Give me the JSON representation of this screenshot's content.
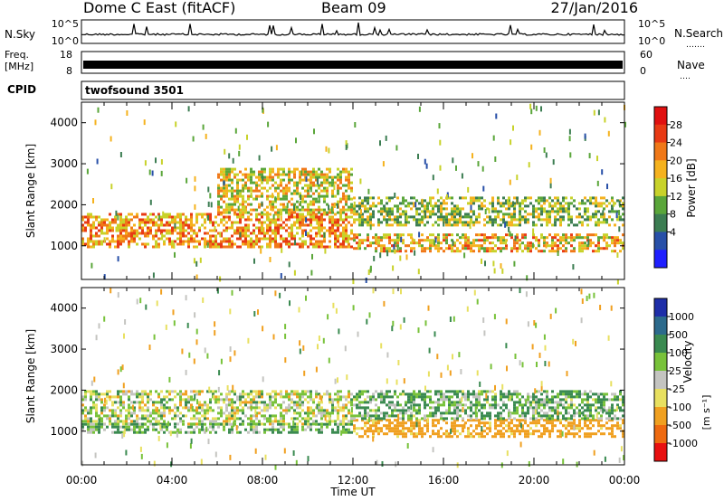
{
  "header": {
    "station": "Dome C East (fitACF)",
    "beam": "Beam 09",
    "date": "27/Jan/2016"
  },
  "nsky_panel": {
    "left_label": "N.Sky",
    "left_ticks": [
      "10^5",
      "10^0"
    ],
    "right_ticks": [
      "10^5",
      "10^0"
    ],
    "right_label": "N.Search",
    "right_dots": "․․․․․․․"
  },
  "freq_panel": {
    "label_line1": "Freq.",
    "label_line2": "[MHz]",
    "left_ticks": [
      "18",
      "8"
    ],
    "right_ticks": [
      "60",
      "0"
    ],
    "right_label": "Nave",
    "right_dots": "․․․․"
  },
  "cpid_panel": {
    "label": "CPID",
    "value": "twofsound 3501"
  },
  "colors": {
    "power_scale": [
      "#1f1fff",
      "#2850a8",
      "#3c7d52",
      "#5aa63a",
      "#c8d22a",
      "#f5b21e",
      "#f07818",
      "#e83a14",
      "#e01010"
    ],
    "velocity_scale": [
      "#1e2ea8",
      "#2c6a8c",
      "#3a8a50",
      "#78c23a",
      "#c4c4c0",
      "#e8e060",
      "#f0a020",
      "#ee6a10",
      "#e81010"
    ]
  },
  "chart_data": [
    {
      "type": "heatmap",
      "name": "power-panel",
      "x": {
        "label": "Time UT",
        "range": [
          "00:00",
          "24:00"
        ],
        "ticks": [
          "00:00",
          "04:00",
          "08:00",
          "12:00",
          "16:00",
          "20:00",
          "00:00"
        ]
      },
      "y": {
        "label": "Slant Range [km]",
        "range": [
          180,
          4500
        ],
        "ticks": [
          1000,
          2000,
          3000,
          4000
        ]
      },
      "colorbar": {
        "label": "Power [dB]",
        "range": [
          0,
          32
        ],
        "ticks": [
          4,
          8,
          12,
          16,
          20,
          24,
          28
        ]
      },
      "dominant_bands": [
        {
          "start_h": 0,
          "end_h": 12,
          "range_km": [
            1000,
            1800
          ],
          "level_db": 22
        },
        {
          "start_h": 6,
          "end_h": 12,
          "range_km": [
            1800,
            2900
          ],
          "level_db": 18
        },
        {
          "start_h": 12,
          "end_h": 24,
          "range_km": [
            900,
            1300
          ],
          "level_db": 20
        },
        {
          "start_h": 12,
          "end_h": 24,
          "range_km": [
            1500,
            2200
          ],
          "level_db": 14
        }
      ]
    },
    {
      "type": "heatmap",
      "name": "velocity-panel",
      "x": {
        "label": "Time UT",
        "range": [
          "00:00",
          "24:00"
        ],
        "ticks": [
          "00:00",
          "04:00",
          "08:00",
          "12:00",
          "16:00",
          "20:00",
          "00:00"
        ]
      },
      "y": {
        "label": "Slant Range [km]",
        "range": [
          180,
          4500
        ],
        "ticks": [
          1000,
          2000,
          3000,
          4000
        ]
      },
      "colorbar": {
        "label": "Velocity",
        "units": "[m s⁻¹]",
        "ticks": [
          1000,
          500,
          100,
          25,
          -25,
          -100,
          -500,
          -1000
        ]
      },
      "dominant_bands": [
        {
          "start_h": 0,
          "end_h": 12,
          "range_km": [
            1200,
            2000
          ],
          "velocity": 0
        },
        {
          "start_h": 0,
          "end_h": 12,
          "range_km": [
            1000,
            1200
          ],
          "velocity": 100
        },
        {
          "start_h": 12,
          "end_h": 24,
          "range_km": [
            900,
            1300
          ],
          "velocity": -200
        },
        {
          "start_h": 12,
          "end_h": 24,
          "range_km": [
            1300,
            2000
          ],
          "velocity": 100
        }
      ]
    }
  ]
}
